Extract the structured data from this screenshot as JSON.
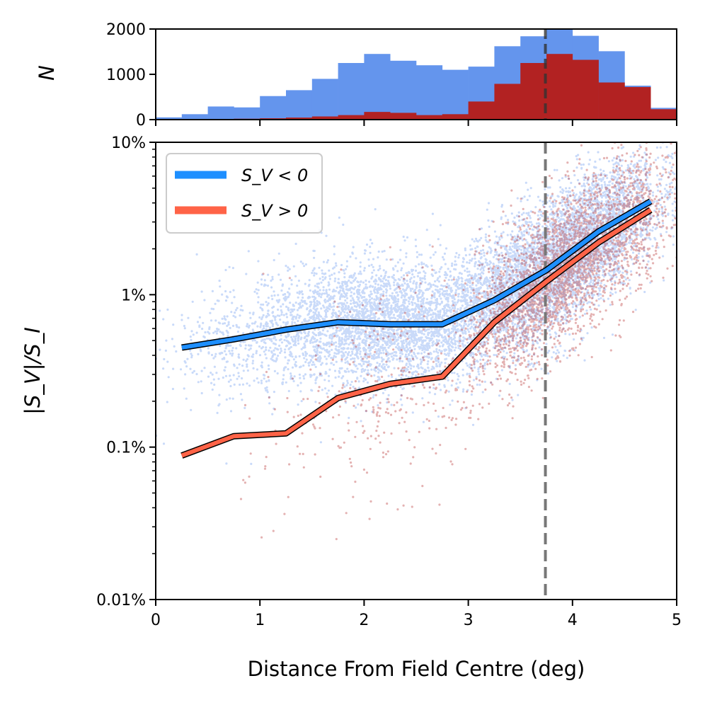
{
  "chart_data": [
    {
      "type": "histogram",
      "name": "top-histogram",
      "ylabel": "N",
      "xlim": [
        0,
        5
      ],
      "ylim": [
        0,
        2000
      ],
      "yticks": [
        0,
        1000,
        2000
      ],
      "ytick_labels": [
        "0",
        "1000",
        "2000"
      ],
      "bin_edges": [
        0.0,
        0.25,
        0.5,
        0.75,
        1.0,
        1.25,
        1.5,
        1.75,
        2.0,
        2.25,
        2.5,
        2.75,
        3.0,
        3.25,
        3.5,
        3.75,
        4.0,
        4.25,
        4.5,
        4.75,
        5.0
      ],
      "series": [
        {
          "name": "S_V < 0",
          "color": "#6495ED",
          "values": [
            50,
            120,
            290,
            270,
            520,
            650,
            900,
            1250,
            1450,
            1300,
            1200,
            1100,
            1170,
            1620,
            1840,
            2010,
            1850,
            1510,
            750,
            260
          ]
        },
        {
          "name": "S_V > 0",
          "color": "#B22222",
          "values": [
            0,
            0,
            0,
            20,
            30,
            45,
            70,
            100,
            170,
            150,
            100,
            120,
            400,
            790,
            1250,
            1450,
            1320,
            820,
            720,
            230
          ]
        }
      ],
      "vline": {
        "x": 3.74,
        "style": "dashed",
        "color": "#444444"
      }
    },
    {
      "type": "scatter+line",
      "name": "main-scatter",
      "xlabel": "Distance From Field Centre (deg)",
      "ylabel": "|S_V|/S_I",
      "xlim": [
        0,
        5
      ],
      "ylim": [
        0.0001,
        0.1
      ],
      "yscale": "log",
      "xticks": [
        0,
        1,
        2,
        3,
        4,
        5
      ],
      "xtick_labels": [
        "0",
        "1",
        "2",
        "3",
        "4",
        "5"
      ],
      "yticks": [
        0.0001,
        0.001,
        0.01,
        0.1
      ],
      "ytick_labels": [
        "0.01%",
        "0.1%",
        "1%",
        "10%"
      ],
      "vline": {
        "x": 3.74,
        "style": "dashed",
        "color": "#777777"
      },
      "legend": {
        "location": "upper-left",
        "entries": [
          {
            "label": "S_V < 0",
            "color": "#1E8FFF"
          },
          {
            "label": "S_V > 0",
            "color": "#FF6347"
          }
        ]
      },
      "lines": [
        {
          "name": "S_V < 0",
          "color": "#1E8FFF",
          "x": [
            0.25,
            0.75,
            1.25,
            1.75,
            2.25,
            2.75,
            3.25,
            3.75,
            4.25,
            4.75
          ],
          "y": [
            0.0045,
            0.0051,
            0.0059,
            0.0066,
            0.0064,
            0.0064,
            0.0092,
            0.0145,
            0.026,
            0.041
          ]
        },
        {
          "name": "S_V > 0",
          "color": "#FF6347",
          "x": [
            0.25,
            0.75,
            1.25,
            1.75,
            2.25,
            2.75,
            3.25,
            3.75,
            4.25,
            4.75
          ],
          "y": [
            0.00088,
            0.00118,
            0.00123,
            0.0021,
            0.0026,
            0.0029,
            0.0066,
            0.0122,
            0.022,
            0.036
          ]
        }
      ],
      "scatter_series": [
        {
          "name": "S_V < 0 sources",
          "color": "#6495ED",
          "approx_count": 15000
        },
        {
          "name": "S_V > 0 sources",
          "color": "#B22222",
          "approx_count": 7000
        }
      ]
    }
  ]
}
